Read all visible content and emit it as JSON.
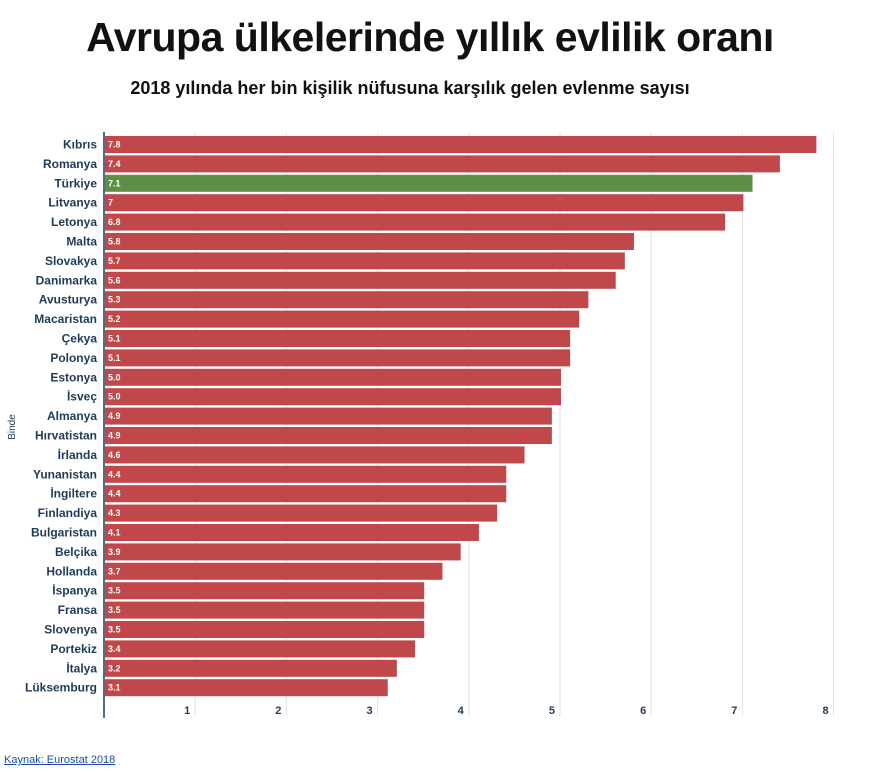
{
  "title": "Avrupa ülkelerinde yıllık evlilik oranı",
  "subtitle": "2018 yılında her bin kişilik nüfusuna karşılık gelen evlenme sayısı",
  "source": "Kaynak: Eurostat 2018",
  "colors": {
    "default": "#c0474a",
    "highlight": "#5f8f47"
  },
  "chart_data": {
    "type": "bar",
    "orientation": "horizontal",
    "title": "Avrupa ülkelerinde yıllık evlilik oranı",
    "subtitle": "2018 yılında her bin kişilik nüfusuna karşılık gelen evlenme sayısı",
    "ylabel": "Binde",
    "xlim": [
      0,
      8
    ],
    "xticks": [
      1,
      2,
      3,
      4,
      5,
      6,
      7,
      8
    ],
    "grid": true,
    "highlight": "Türkiye",
    "categories": [
      "Kıbrıs",
      "Romanya",
      "Türkiye",
      "Litvanya",
      "Letonya",
      "Malta",
      "Slovakya",
      "Danimarka",
      "Avusturya",
      "Macaristan",
      "Çekya",
      "Polonya",
      "Estonya",
      "İsveç",
      "Almanya",
      "Hırvatistan",
      "İrlanda",
      "Yunanistan",
      "İngiltere",
      "Finlandiya",
      "Bulgaristan",
      "Belçika",
      "Hollanda",
      "İspanya",
      "Fransa",
      "Slovenya",
      "Portekiz",
      "İtalya",
      "Lüksemburg"
    ],
    "values": [
      7.8,
      7.4,
      7.1,
      7.0,
      6.8,
      5.8,
      5.7,
      5.6,
      5.3,
      5.2,
      5.1,
      5.1,
      5.0,
      5.0,
      4.9,
      4.9,
      4.6,
      4.4,
      4.4,
      4.3,
      4.1,
      3.9,
      3.7,
      3.5,
      3.5,
      3.5,
      3.4,
      3.2,
      3.1
    ],
    "value_labels": [
      "7.8",
      "7.4",
      "7.1",
      "7",
      "6.8",
      "5.8",
      "5.7",
      "5.6",
      "5.3",
      "5.2",
      "5.1",
      "5.1",
      "5.0",
      "5.0",
      "4.9",
      "4.9",
      "4.6",
      "4.4",
      "4.4",
      "4.3",
      "4.1",
      "3.9",
      "3.7",
      "3.5",
      "3.5",
      "3.5",
      "3.4",
      "3.2",
      "3.1"
    ]
  }
}
